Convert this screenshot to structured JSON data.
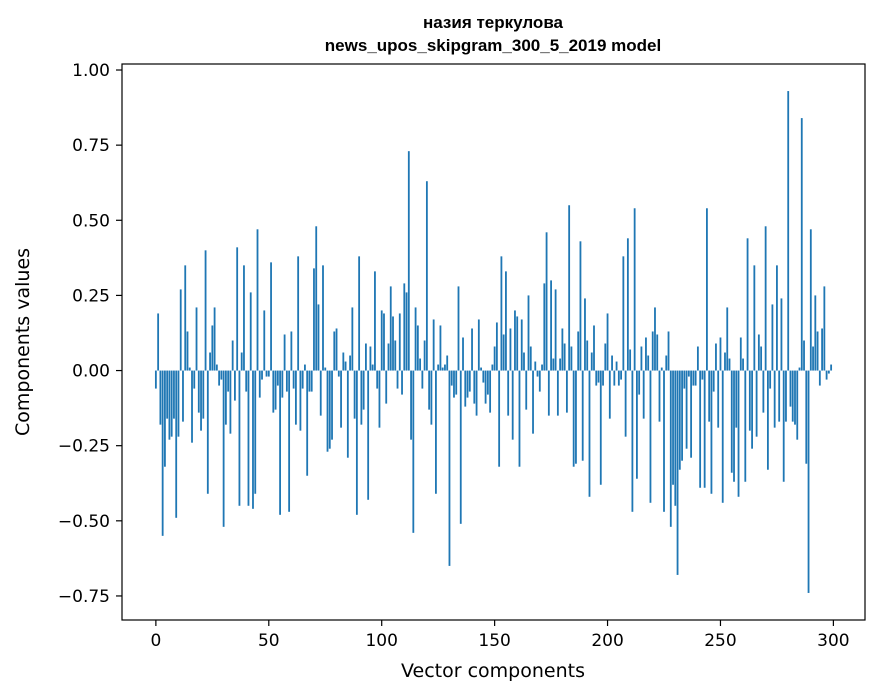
{
  "chart_data": {
    "type": "bar",
    "title": "назия теркулова",
    "subtitle": "news_upos_skipgram_300_5_2019 model",
    "xlabel": "Vector components",
    "ylabel": "Components values",
    "xlim": [
      -15,
      314
    ],
    "ylim": [
      -0.83,
      1.02
    ],
    "xticks": [
      0,
      50,
      100,
      150,
      200,
      250,
      300
    ],
    "yticks": [
      -0.75,
      -0.5,
      -0.25,
      0.0,
      0.25,
      0.5,
      0.75,
      1.0
    ],
    "xtick_labels": [
      "0",
      "50",
      "100",
      "150",
      "200",
      "250",
      "300"
    ],
    "ytick_labels": [
      "−0.75",
      "−0.50",
      "−0.25",
      "0.00",
      "0.25",
      "0.50",
      "0.75",
      "1.00"
    ],
    "grid": false,
    "bar_color": "#1f77b4",
    "x": [
      0,
      1,
      2,
      3,
      4,
      5,
      6,
      7,
      8,
      9,
      10,
      11,
      12,
      13,
      14,
      15,
      16,
      17,
      18,
      19,
      20,
      21,
      22,
      23,
      24,
      25,
      26,
      27,
      28,
      29,
      30,
      31,
      32,
      33,
      34,
      35,
      36,
      37,
      38,
      39,
      40,
      41,
      42,
      43,
      44,
      45,
      46,
      47,
      48,
      49,
      50,
      51,
      52,
      53,
      54,
      55,
      56,
      57,
      58,
      59,
      60,
      61,
      62,
      63,
      64,
      65,
      66,
      67,
      68,
      69,
      70,
      71,
      72,
      73,
      74,
      75,
      76,
      77,
      78,
      79,
      80,
      81,
      82,
      83,
      84,
      85,
      86,
      87,
      88,
      89,
      90,
      91,
      92,
      93,
      94,
      95,
      96,
      97,
      98,
      99,
      100,
      101,
      102,
      103,
      104,
      105,
      106,
      107,
      108,
      109,
      110,
      111,
      112,
      113,
      114,
      115,
      116,
      117,
      118,
      119,
      120,
      121,
      122,
      123,
      124,
      125,
      126,
      127,
      128,
      129,
      130,
      131,
      132,
      133,
      134,
      135,
      136,
      137,
      138,
      139,
      140,
      141,
      142,
      143,
      144,
      145,
      146,
      147,
      148,
      149,
      150,
      151,
      152,
      153,
      154,
      155,
      156,
      157,
      158,
      159,
      160,
      161,
      162,
      163,
      164,
      165,
      166,
      167,
      168,
      169,
      170,
      171,
      172,
      173,
      174,
      175,
      176,
      177,
      178,
      179,
      180,
      181,
      182,
      183,
      184,
      185,
      186,
      187,
      188,
      189,
      190,
      191,
      192,
      193,
      194,
      195,
      196,
      197,
      198,
      199,
      200,
      201,
      202,
      203,
      204,
      205,
      206,
      207,
      208,
      209,
      210,
      211,
      212,
      213,
      214,
      215,
      216,
      217,
      218,
      219,
      220,
      221,
      222,
      223,
      224,
      225,
      226,
      227,
      228,
      229,
      230,
      231,
      232,
      233,
      234,
      235,
      236,
      237,
      238,
      239,
      240,
      241,
      242,
      243,
      244,
      245,
      246,
      247,
      248,
      249,
      250,
      251,
      252,
      253,
      254,
      255,
      256,
      257,
      258,
      259,
      260,
      261,
      262,
      263,
      264,
      265,
      266,
      267,
      268,
      269,
      270,
      271,
      272,
      273,
      274,
      275,
      276,
      277,
      278,
      279,
      280,
      281,
      282,
      283,
      284,
      285,
      286,
      287,
      288,
      289,
      290,
      291,
      292,
      293,
      294,
      295,
      296,
      297,
      298,
      299
    ],
    "values": [
      -0.06,
      0.19,
      -0.18,
      -0.55,
      -0.32,
      -0.16,
      -0.23,
      -0.22,
      -0.16,
      -0.49,
      -0.22,
      0.27,
      -0.17,
      0.35,
      0.13,
      0.01,
      -0.24,
      -0.06,
      0.21,
      -0.14,
      -0.2,
      -0.16,
      0.4,
      -0.41,
      0.06,
      0.15,
      0.21,
      0.02,
      -0.05,
      -0.03,
      -0.52,
      -0.18,
      -0.07,
      -0.21,
      0.1,
      -0.1,
      0.41,
      -0.45,
      0.06,
      0.35,
      -0.07,
      -0.45,
      0.26,
      -0.46,
      -0.41,
      0.47,
      -0.09,
      -0.03,
      0.2,
      -0.02,
      -0.02,
      0.36,
      -0.14,
      -0.13,
      -0.05,
      -0.48,
      -0.09,
      0.12,
      -0.07,
      -0.47,
      0.13,
      -0.06,
      -0.18,
      0.38,
      -0.2,
      -0.06,
      0.02,
      -0.35,
      -0.07,
      -0.07,
      0.34,
      0.48,
      0.22,
      -0.15,
      0.35,
      0.01,
      -0.27,
      -0.26,
      -0.23,
      0.13,
      0.14,
      -0.02,
      -0.19,
      0.06,
      0.03,
      -0.29,
      0.05,
      0.21,
      -0.16,
      -0.48,
      0.38,
      -0.18,
      -0.13,
      0.09,
      -0.43,
      0.08,
      0.02,
      0.33,
      -0.06,
      -0.19,
      0.2,
      0.19,
      -0.11,
      0.09,
      0.28,
      0.18,
      0.1,
      -0.06,
      0.19,
      -0.08,
      0.29,
      0.26,
      0.73,
      -0.23,
      -0.54,
      0.21,
      0.15,
      0.04,
      -0.06,
      0.1,
      0.63,
      -0.13,
      -0.18,
      0.17,
      -0.41,
      0.02,
      0.15,
      0.01,
      0.02,
      0.05,
      -0.65,
      -0.05,
      -0.09,
      -0.08,
      0.28,
      -0.51,
      0.11,
      -0.12,
      -0.09,
      -0.07,
      0.14,
      -0.11,
      -0.15,
      0.17,
      0.01,
      -0.04,
      -0.11,
      -0.08,
      -0.14,
      0.02,
      0.08,
      0.16,
      -0.32,
      0.38,
      0.12,
      0.33,
      -0.15,
      0.14,
      -0.23,
      0.2,
      0.18,
      -0.32,
      0.17,
      0.06,
      -0.13,
      0.25,
      0.08,
      -0.21,
      0.03,
      -0.02,
      -0.07,
      0.02,
      0.29,
      0.46,
      -0.15,
      0.3,
      0.04,
      0.27,
      -0.15,
      0.04,
      0.14,
      0.09,
      -0.14,
      0.55,
      0.08,
      -0.32,
      -0.31,
      0.13,
      0.43,
      -0.3,
      0.24,
      0.1,
      -0.42,
      0.06,
      0.15,
      -0.05,
      -0.04,
      -0.38,
      -0.05,
      0.09,
      0.19,
      -0.16,
      0.05,
      -0.05,
      0.03,
      -0.05,
      -0.03,
      0.38,
      -0.22,
      0.44,
      0.07,
      -0.47,
      0.54,
      -0.36,
      -0.08,
      0.08,
      -0.16,
      0.11,
      0.05,
      -0.44,
      0.13,
      0.21,
      0.12,
      -0.17,
      0.01,
      -0.47,
      0.05,
      0.13,
      -0.52,
      -0.38,
      -0.45,
      -0.68,
      -0.33,
      -0.3,
      -0.06,
      -0.26,
      -0.02,
      -0.29,
      -0.05,
      -0.05,
      0.08,
      -0.39,
      -0.03,
      -0.39,
      0.54,
      -0.17,
      -0.41,
      -0.07,
      0.09,
      -0.19,
      0.11,
      -0.44,
      0.06,
      0.21,
      0.04,
      -0.34,
      -0.37,
      -0.19,
      -0.42,
      0.11,
      0.04,
      -0.37,
      0.44,
      -0.2,
      -0.26,
      0.35,
      -0.22,
      0.12,
      0.08,
      -0.14,
      0.48,
      -0.33,
      -0.06,
      0.22,
      -0.19,
      0.35,
      -0.17,
      0.24,
      -0.37,
      -0.17,
      0.93,
      -0.12,
      -0.17,
      -0.18,
      -0.23,
      0.01,
      0.84,
      0.1,
      -0.31,
      -0.74,
      0.47,
      0.08,
      0.25,
      0.13,
      -0.05,
      0.14,
      0.28,
      -0.03,
      -0.01,
      0.02
    ]
  }
}
